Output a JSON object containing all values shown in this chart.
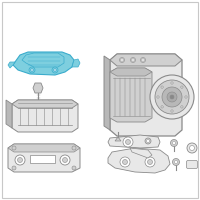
{
  "background_color": "#ffffff",
  "border_color": "#c8c8c8",
  "line_color": "#8a8a8a",
  "fill_light": "#e8e8e8",
  "fill_mid": "#d0d0d0",
  "fill_dark": "#b8b8b8",
  "highlight_fill": "#7ecfdf",
  "highlight_edge": "#3aaccc",
  "fig_width": 2.0,
  "fig_height": 2.0,
  "dpi": 100
}
